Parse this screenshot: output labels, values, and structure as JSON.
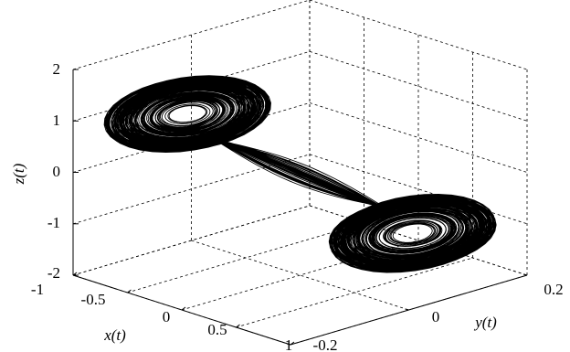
{
  "chart_data": {
    "type": "line",
    "projection": "3d",
    "title": "",
    "xlabel": "x(t)",
    "ylabel": "y(t)",
    "zlabel": "z(t)",
    "xlim": [
      -1,
      1
    ],
    "ylim": [
      -0.2,
      0.2
    ],
    "zlim": [
      -2,
      2
    ],
    "x_ticks": [
      "-1",
      "-0.5",
      "0",
      "0.5",
      "1"
    ],
    "y_ticks": [
      "-0.2",
      "0",
      "0.2"
    ],
    "z_ticks": [
      "-2",
      "-1",
      "0",
      "1",
      "2"
    ],
    "grid": true,
    "line_color": "#000000",
    "series": [
      {
        "attractor_lobes": [
          {
            "center_x": -0.6,
            "center_y": -0.08,
            "center_z": 1.0,
            "inner_radius": 0.12,
            "outer_radius": 0.55
          },
          {
            "center_x": 0.6,
            "center_y": 0.08,
            "center_z": -1.05,
            "inner_radius": 0.12,
            "outer_radius": 0.55
          }
        ]
      }
    ]
  }
}
